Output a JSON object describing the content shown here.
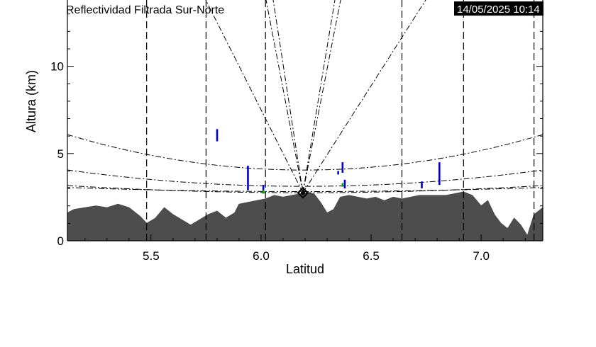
{
  "chart_data": {
    "type": "area",
    "title": "Reflectividad Filtrada Sur-Norte",
    "timestamp": "14/05/2025 10:14",
    "xlabel": "Latitud",
    "ylabel": "Altura (km)",
    "xlim": [
      5.12,
      7.28
    ],
    "ylim": [
      0,
      13.8
    ],
    "xticks": [
      5.5,
      6.0,
      6.5,
      7.0
    ],
    "xtick_labels": [
      "5.5",
      "6.0",
      "6.5",
      "7.0"
    ],
    "yticks": [
      0,
      5,
      10
    ],
    "ytick_labels": [
      "0",
      "5",
      "10"
    ],
    "radar_position": {
      "x": 6.19,
      "y": 2.75
    },
    "terrain": {
      "color": "#4d4d4d",
      "x": [
        5.12,
        5.15,
        5.2,
        5.25,
        5.3,
        5.35,
        5.4,
        5.45,
        5.48,
        5.52,
        5.56,
        5.6,
        5.64,
        5.68,
        5.72,
        5.76,
        5.8,
        5.84,
        5.88,
        5.9,
        5.94,
        5.98,
        6.02,
        6.06,
        6.1,
        6.14,
        6.18,
        6.2,
        6.24,
        6.27,
        6.3,
        6.33,
        6.36,
        6.4,
        6.44,
        6.48,
        6.52,
        6.56,
        6.6,
        6.64,
        6.68,
        6.72,
        6.76,
        6.8,
        6.84,
        6.88,
        6.92,
        6.96,
        7.0,
        7.03,
        7.06,
        7.09,
        7.12,
        7.15,
        7.18,
        7.21,
        7.24,
        7.26,
        7.28
      ],
      "y": [
        1.6,
        1.8,
        1.9,
        2.0,
        1.9,
        2.1,
        1.9,
        1.4,
        1.0,
        1.3,
        1.9,
        1.5,
        1.2,
        0.9,
        1.2,
        1.5,
        1.7,
        1.3,
        1.6,
        2.1,
        2.2,
        2.3,
        2.4,
        2.6,
        2.5,
        2.6,
        2.7,
        2.75,
        2.7,
        2.2,
        1.6,
        1.8,
        2.5,
        2.6,
        2.5,
        2.4,
        2.5,
        2.3,
        2.5,
        2.4,
        2.5,
        2.6,
        2.6,
        2.6,
        2.6,
        2.7,
        2.8,
        2.6,
        2.0,
        2.3,
        1.5,
        1.0,
        0.7,
        1.3,
        0.9,
        0.3,
        1.5,
        1.7,
        1.9
      ]
    },
    "cell_series": [
      {
        "color": "#0000cc",
        "x": [
          5.8,
          5.94,
          6.01,
          6.35,
          6.37,
          6.38,
          6.73,
          6.81
        ],
        "y_bottom": [
          5.7,
          2.9,
          2.8,
          3.8,
          3.9,
          3.0,
          3.0,
          3.2
        ],
        "y_top": [
          6.4,
          4.3,
          3.2,
          4.0,
          4.5,
          3.5,
          3.4,
          4.5
        ]
      },
      {
        "color": "#00aa00",
        "x": [
          6.01,
          6.37
        ],
        "y_bottom": [
          2.7,
          3.1
        ],
        "y_top": [
          2.9,
          3.3
        ]
      }
    ]
  }
}
